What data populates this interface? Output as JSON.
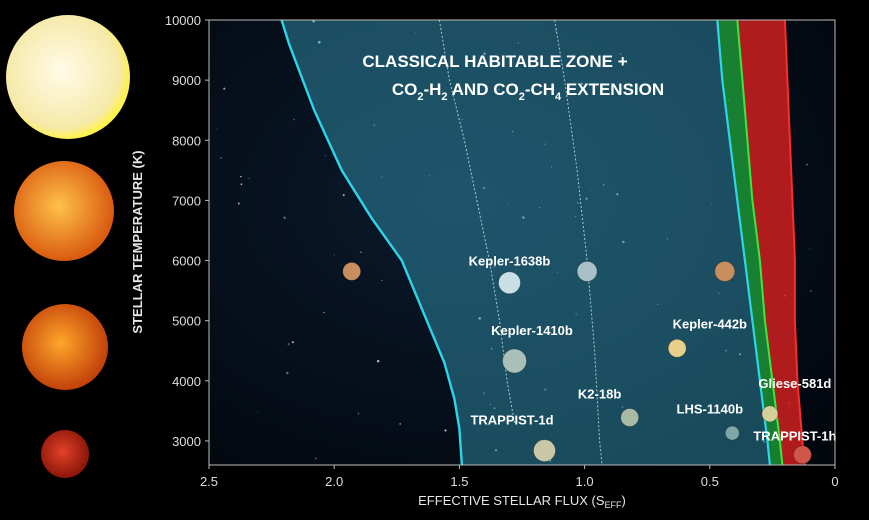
{
  "chart_data": {
    "type": "area",
    "title_line1": "CLASSICAL HABITABLE ZONE +",
    "title_line2_parts": [
      "CO",
      "2",
      "-H",
      "2",
      " AND CO",
      "2",
      "-CH",
      "4",
      " EXTENSION"
    ],
    "xlabel_main": "EFFECTIVE STELLAR FLUX (S",
    "xlabel_sub": "EFF",
    "xlabel_close": ")",
    "ylabel": "STELLAR TEMPERATURE (K)",
    "xlim": [
      2.5,
      0
    ],
    "ylim": [
      2600,
      10000
    ],
    "x_ticks": [
      {
        "value": 2.5,
        "label": "2.5"
      },
      {
        "value": 2.0,
        "label": "2.0"
      },
      {
        "value": 1.5,
        "label": "1.5"
      },
      {
        "value": 1.0,
        "label": "1.0"
      },
      {
        "value": 0.5,
        "label": "0.5"
      },
      {
        "value": 0.0,
        "label": "0"
      }
    ],
    "y_ticks": [
      {
        "value": 10000,
        "label": "10000"
      },
      {
        "value": 9000,
        "label": "9000"
      },
      {
        "value": 8000,
        "label": "8000"
      },
      {
        "value": 7000,
        "label": "7000"
      },
      {
        "value": 6000,
        "label": "6000"
      },
      {
        "value": 5000,
        "label": "5000"
      },
      {
        "value": 4000,
        "label": "4000"
      },
      {
        "value": 3000,
        "label": "3000"
      }
    ],
    "boundaries": {
      "inner_edge": [
        [
          2.21,
          10000
        ],
        [
          2.18,
          9600
        ],
        [
          2.08,
          8500
        ],
        [
          1.97,
          7500
        ],
        [
          1.85,
          6700
        ],
        [
          1.73,
          6000
        ],
        [
          1.63,
          5000
        ],
        [
          1.56,
          4300
        ],
        [
          1.52,
          3700
        ],
        [
          1.5,
          3200
        ],
        [
          1.49,
          2600
        ]
      ],
      "outer_edge": [
        [
          0.47,
          10000
        ],
        [
          0.45,
          9000
        ],
        [
          0.42,
          8000
        ],
        [
          0.39,
          7000
        ],
        [
          0.36,
          6000
        ],
        [
          0.33,
          5000
        ],
        [
          0.3,
          4000
        ],
        [
          0.27,
          3000
        ],
        [
          0.26,
          2600
        ]
      ],
      "green_outer": [
        [
          0.39,
          10000
        ],
        [
          0.37,
          9000
        ],
        [
          0.35,
          8000
        ],
        [
          0.33,
          7000
        ],
        [
          0.3,
          6000
        ],
        [
          0.28,
          5000
        ],
        [
          0.25,
          4000
        ],
        [
          0.22,
          3000
        ],
        [
          0.21,
          2600
        ]
      ],
      "red_outer": [
        [
          0.2,
          10000
        ],
        [
          0.19,
          9000
        ],
        [
          0.18,
          8000
        ],
        [
          0.17,
          7000
        ],
        [
          0.16,
          6000
        ],
        [
          0.16,
          5000
        ],
        [
          0.15,
          4000
        ],
        [
          0.13,
          3000
        ],
        [
          0.12,
          2600
        ]
      ],
      "dotted_1": [
        [
          1.12,
          10000
        ],
        [
          1.08,
          9000
        ],
        [
          1.03,
          7500
        ],
        [
          0.99,
          6000
        ],
        [
          0.96,
          4500
        ],
        [
          0.94,
          3000
        ],
        [
          0.93,
          2600
        ]
      ],
      "dotted_2": [
        [
          1.58,
          10000
        ],
        [
          1.54,
          9000
        ],
        [
          1.48,
          8000
        ],
        [
          1.43,
          7000
        ],
        [
          1.38,
          6000
        ],
        [
          1.34,
          5000
        ],
        [
          1.31,
          4000
        ],
        [
          1.28,
          3300
        ]
      ]
    },
    "planets": [
      {
        "name": "",
        "x": 1.93,
        "y": 5820,
        "color": "#c98e5e",
        "r": 9
      },
      {
        "name": "",
        "x": 0.99,
        "y": 5820,
        "color": "#a9c0c9",
        "r": 10
      },
      {
        "name": "",
        "x": 0.44,
        "y": 5820,
        "color": "#c98e5e",
        "r": 10
      },
      {
        "name": "Kepler-1638b",
        "x": 1.3,
        "y": 5630,
        "color": "#c8dfe6",
        "r": 11
      },
      {
        "name": "Kepler-1410b",
        "x": 1.28,
        "y": 4330,
        "color": "#a9c0ba",
        "r": 12
      },
      {
        "name": "Kepler-442b",
        "x": 0.63,
        "y": 4540,
        "color": "#e8cf8a",
        "r": 9
      },
      {
        "name": "K2-18b",
        "x": 0.82,
        "y": 3390,
        "color": "#a8b9a6",
        "r": 9
      },
      {
        "name": "TRAPPIST-1d",
        "x": 1.16,
        "y": 2840,
        "color": "#c8c7a8",
        "r": 11
      },
      {
        "name": "LHS-1140b",
        "x": 0.41,
        "y": 3130,
        "color": "#7fa7a8",
        "r": 7
      },
      {
        "name": "Gliese-581d",
        "x": 0.26,
        "y": 3450,
        "color": "#d5d09a",
        "r": 8
      },
      {
        "name": "TRAPPIST-1h",
        "x": 0.13,
        "y": 2770,
        "color": "#d0564a",
        "r": 9
      }
    ],
    "planet_labels": [
      {
        "text": "Kepler-1638b",
        "x": 1.3,
        "y": 5920
      },
      {
        "text": "Kepler-1410b",
        "x": 1.21,
        "y": 4760
      },
      {
        "text": "Kepler-442b",
        "x": 0.5,
        "y": 4870
      },
      {
        "text": "K2-18b",
        "x": 0.94,
        "y": 3710
      },
      {
        "text": "TRAPPIST-1d",
        "x": 1.29,
        "y": 3270
      },
      {
        "text": "LHS-1140b",
        "x": 0.5,
        "y": 3460
      },
      {
        "text": "Gliese-581d",
        "x": 0.16,
        "y": 3880
      },
      {
        "text": "TRAPPIST-1h",
        "x": 0.16,
        "y": 3010
      }
    ],
    "colors": {
      "hz_fill": "#3aa8c4",
      "hz_edge": "#2fd4e8",
      "green_fill": "#1fa73a",
      "green_edge": "#38e840",
      "red_fill": "#cf1e1e",
      "red_edge": "#ff2a2a",
      "axis_text": "#dddddd",
      "label_text": "#ffffff"
    }
  },
  "stars": [
    {
      "name": "hot-star",
      "color1": "#fffbe8",
      "color2": "#f6e9a8",
      "glow": "#fff24a"
    },
    {
      "name": "sun-star",
      "color1": "#ffc24a",
      "color2": "#d95a10",
      "glow": "#ff8a1a"
    },
    {
      "name": "k-star",
      "color1": "#ffa62a",
      "color2": "#c2420a",
      "glow": "#e86010"
    },
    {
      "name": "m-star",
      "color1": "#e2422a",
      "color2": "#8c1608",
      "glow": "#c02010"
    }
  ]
}
